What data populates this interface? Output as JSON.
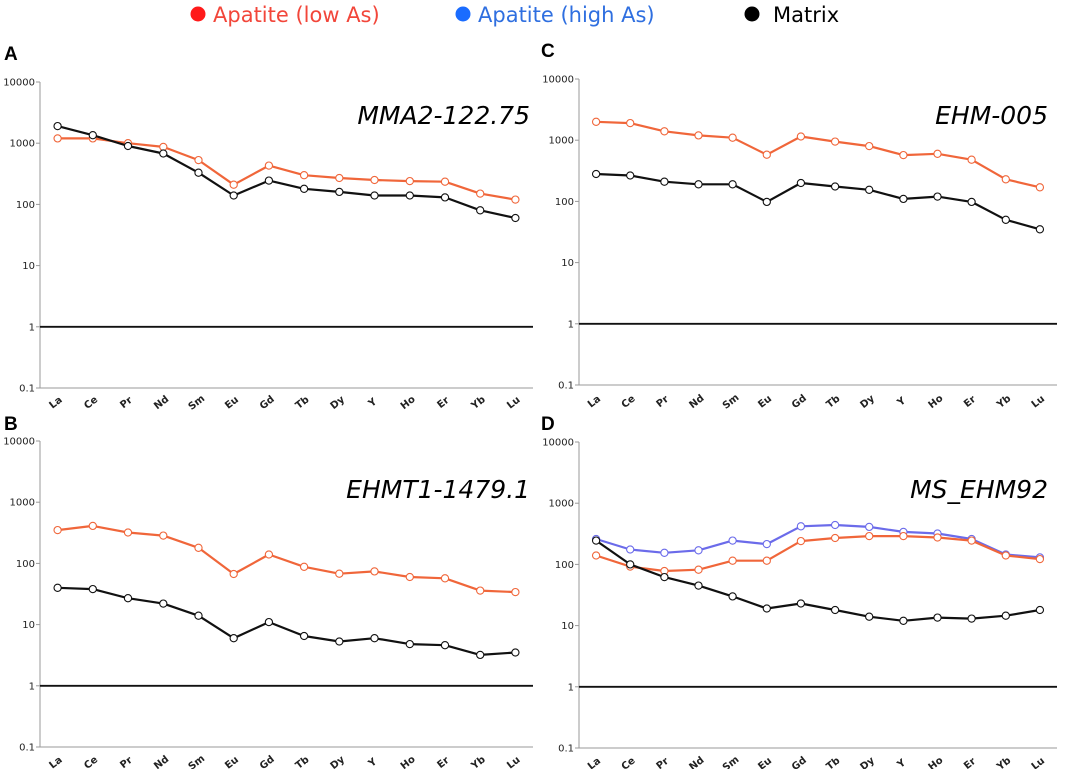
{
  "legend": {
    "items": [
      {
        "label": "Apatite (low As)",
        "color": "#ff1a1a",
        "text_color": "#f2463a"
      },
      {
        "label": "Apatite (high As)",
        "color": "#1a6cff",
        "text_color": "#2f6fe0"
      },
      {
        "label": "Matrix",
        "color": "#000000",
        "text_color": "#000000"
      }
    ]
  },
  "chart_data": [
    {
      "type": "line",
      "panel": "A",
      "title": "MMA2-122.75",
      "yscale": "log",
      "ylim": [
        0.1,
        10000
      ],
      "yticks": [
        "0.1",
        "1",
        "10",
        "100",
        "1000",
        "10000"
      ],
      "reference_line": 1,
      "categories": [
        "La",
        "Ce",
        "Pr",
        "Nd",
        "Sm",
        "Eu",
        "Gd",
        "Tb",
        "Dy",
        "Y",
        "Ho",
        "Er",
        "Yb",
        "Lu"
      ],
      "series": [
        {
          "name": "Apatite (low As)",
          "color": "#f0663a",
          "values": [
            1200,
            1200,
            1000,
            870,
            530,
            210,
            430,
            300,
            270,
            250,
            240,
            235,
            150,
            120
          ]
        },
        {
          "name": "Matrix",
          "color": "#111111",
          "values": [
            1900,
            1350,
            900,
            680,
            330,
            140,
            245,
            180,
            160,
            140,
            140,
            130,
            80,
            60
          ]
        }
      ]
    },
    {
      "type": "line",
      "panel": "B",
      "title": "EHMT1-1479.1",
      "yscale": "log",
      "ylim": [
        0.1,
        10000
      ],
      "yticks": [
        "0.1",
        "1",
        "10",
        "100",
        "1000",
        "10000"
      ],
      "reference_line": 1,
      "categories": [
        "La",
        "Ce",
        "Pr",
        "Nd",
        "Sm",
        "Eu",
        "Gd",
        "Tb",
        "Dy",
        "Y",
        "Ho",
        "Er",
        "Yb",
        "Lu"
      ],
      "series": [
        {
          "name": "Apatite (low As)",
          "color": "#f0663a",
          "values": [
            350,
            410,
            320,
            285,
            180,
            67,
            140,
            88,
            68,
            74,
            60,
            57,
            36,
            34
          ]
        },
        {
          "name": "Matrix",
          "color": "#111111",
          "values": [
            40,
            38,
            27,
            22,
            14,
            6,
            11,
            6.5,
            5.3,
            6,
            4.8,
            4.6,
            3.2,
            3.5
          ]
        }
      ]
    },
    {
      "type": "line",
      "panel": "C",
      "title": "EHM-005",
      "yscale": "log",
      "ylim": [
        0.1,
        10000
      ],
      "yticks": [
        "0.1",
        "1",
        "10",
        "100",
        "1000",
        "10000"
      ],
      "reference_line": 1,
      "categories": [
        "La",
        "Ce",
        "Pr",
        "Nd",
        "Sm",
        "Eu",
        "Gd",
        "Tb",
        "Dy",
        "Y",
        "Ho",
        "Er",
        "Yb",
        "Lu"
      ],
      "series": [
        {
          "name": "Apatite (low As)",
          "color": "#f0663a",
          "values": [
            2000,
            1900,
            1400,
            1200,
            1100,
            580,
            1150,
            950,
            800,
            570,
            600,
            480,
            230,
            170
          ]
        },
        {
          "name": "Matrix",
          "color": "#111111",
          "values": [
            280,
            265,
            210,
            190,
            190,
            98,
            200,
            175,
            155,
            110,
            120,
            98,
            50,
            35
          ]
        }
      ]
    },
    {
      "type": "line",
      "panel": "D",
      "title": "MS_EHM92",
      "yscale": "log",
      "ylim": [
        0.1,
        10000
      ],
      "yticks": [
        "0.1",
        "1",
        "10",
        "100",
        "1000",
        "10000"
      ],
      "reference_line": 1,
      "categories": [
        "La",
        "Ce",
        "Pr",
        "Nd",
        "Sm",
        "Eu",
        "Gd",
        "Tb",
        "Dy",
        "Y",
        "Ho",
        "Er",
        "Yb",
        "Lu"
      ],
      "series": [
        {
          "name": "Apatite (high As)",
          "color": "#6b6bea",
          "values": [
            260,
            175,
            155,
            170,
            245,
            215,
            420,
            440,
            410,
            340,
            320,
            260,
            145,
            130
          ]
        },
        {
          "name": "Apatite (low As)",
          "color": "#f0663a",
          "values": [
            140,
            92,
            78,
            82,
            115,
            115,
            240,
            270,
            290,
            290,
            275,
            245,
            140,
            122
          ]
        },
        {
          "name": "Matrix",
          "color": "#111111",
          "values": [
            245,
            100,
            62,
            45,
            30,
            19,
            23,
            18,
            14,
            12,
            13.5,
            13,
            14.5,
            18
          ]
        }
      ]
    }
  ]
}
